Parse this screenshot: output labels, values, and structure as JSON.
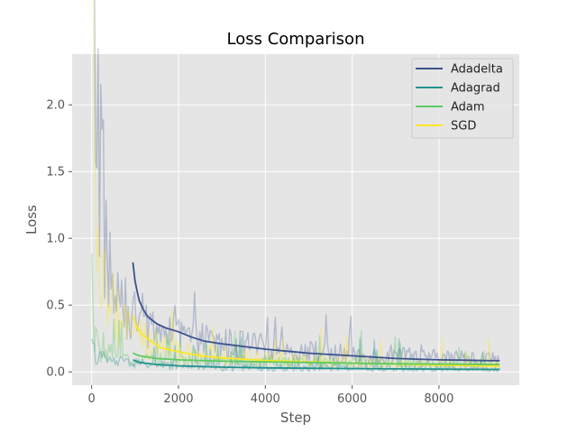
{
  "chart_data": {
    "type": "line",
    "title": "Loss Comparison",
    "xlabel": "Step",
    "ylabel": "Loss",
    "xlim": [
      -450,
      9850
    ],
    "ylim": [
      -0.1,
      2.38
    ],
    "xticks": [
      0,
      2000,
      4000,
      6000,
      8000
    ],
    "yticks": [
      0.0,
      0.5,
      1.0,
      1.5,
      2.0
    ],
    "xtick_labels": [
      "0",
      "2000",
      "4000",
      "6000",
      "8000"
    ],
    "ytick_labels": [
      "0.0",
      "0.5",
      "1.0",
      "1.5",
      "2.0"
    ],
    "grid": true,
    "legend_position": "top-right",
    "background": "#e5e5e5",
    "series": [
      {
        "name": "Adadelta",
        "color": "#3b528b",
        "raw_points": [
          [
            0,
            2.28
          ],
          [
            100,
            2.1
          ],
          [
            200,
            1.6
          ],
          [
            300,
            1.05
          ],
          [
            400,
            0.7
          ],
          [
            500,
            0.55
          ],
          [
            600,
            0.48
          ],
          [
            800,
            0.42
          ],
          [
            1000,
            0.38
          ],
          [
            1500,
            0.3
          ],
          [
            2000,
            0.25
          ],
          [
            3000,
            0.2
          ],
          [
            4000,
            0.17
          ],
          [
            5000,
            0.14
          ],
          [
            6000,
            0.12
          ],
          [
            7000,
            0.11
          ],
          [
            8000,
            0.1
          ],
          [
            9400,
            0.09
          ]
        ],
        "smooth_points": [
          [
            950,
            0.82
          ],
          [
            1000,
            0.68
          ],
          [
            1050,
            0.6
          ],
          [
            1100,
            0.53
          ],
          [
            1200,
            0.46
          ],
          [
            1300,
            0.41
          ],
          [
            1500,
            0.36
          ],
          [
            1700,
            0.33
          ],
          [
            2000,
            0.3
          ],
          [
            2300,
            0.26
          ],
          [
            2600,
            0.23
          ],
          [
            3000,
            0.21
          ],
          [
            3500,
            0.19
          ],
          [
            4000,
            0.17
          ],
          [
            4500,
            0.155
          ],
          [
            5000,
            0.14
          ],
          [
            5500,
            0.13
          ],
          [
            6000,
            0.12
          ],
          [
            6500,
            0.11
          ],
          [
            7000,
            0.1
          ],
          [
            7500,
            0.095
          ],
          [
            8000,
            0.09
          ],
          [
            8500,
            0.088
          ],
          [
            9000,
            0.085
          ],
          [
            9400,
            0.083
          ]
        ]
      },
      {
        "name": "Adagrad",
        "color": "#21918c",
        "raw_points": [
          [
            0,
            0.18
          ],
          [
            100,
            0.12
          ],
          [
            200,
            0.1
          ],
          [
            400,
            0.08
          ],
          [
            600,
            0.07
          ],
          [
            1000,
            0.06
          ],
          [
            2000,
            0.04
          ],
          [
            3000,
            0.035
          ],
          [
            4000,
            0.03
          ],
          [
            5000,
            0.028
          ],
          [
            6000,
            0.025
          ],
          [
            7000,
            0.022
          ],
          [
            8000,
            0.02
          ],
          [
            9400,
            0.018
          ]
        ],
        "smooth_points": [
          [
            950,
            0.09
          ],
          [
            1100,
            0.07
          ],
          [
            1500,
            0.055
          ],
          [
            2000,
            0.045
          ],
          [
            2500,
            0.04
          ],
          [
            3000,
            0.035
          ],
          [
            4000,
            0.03
          ],
          [
            5000,
            0.027
          ],
          [
            6000,
            0.024
          ],
          [
            7000,
            0.022
          ],
          [
            8000,
            0.02
          ],
          [
            9400,
            0.018
          ]
        ]
      },
      {
        "name": "Adam",
        "color": "#5ec962",
        "raw_points": [
          [
            0,
            0.62
          ],
          [
            50,
            0.3
          ],
          [
            100,
            0.2
          ],
          [
            200,
            0.15
          ],
          [
            400,
            0.12
          ],
          [
            600,
            0.1
          ],
          [
            1000,
            0.09
          ],
          [
            2000,
            0.08
          ],
          [
            3000,
            0.075
          ],
          [
            4000,
            0.07
          ],
          [
            5000,
            0.068
          ],
          [
            6000,
            0.065
          ],
          [
            7000,
            0.062
          ],
          [
            8000,
            0.06
          ],
          [
            9400,
            0.058
          ]
        ],
        "smooth_points": [
          [
            950,
            0.14
          ],
          [
            1100,
            0.12
          ],
          [
            1500,
            0.1
          ],
          [
            2000,
            0.09
          ],
          [
            3000,
            0.08
          ],
          [
            4000,
            0.075
          ],
          [
            5000,
            0.07
          ],
          [
            6000,
            0.065
          ],
          [
            7000,
            0.06
          ],
          [
            8000,
            0.058
          ],
          [
            9400,
            0.055
          ]
        ]
      },
      {
        "name": "SGD",
        "color": "#fde725",
        "raw_points": [
          [
            0,
            2.22
          ],
          [
            40,
            1.6
          ],
          [
            80,
            1.1
          ],
          [
            150,
            0.8
          ],
          [
            250,
            0.62
          ],
          [
            400,
            0.48
          ],
          [
            600,
            0.38
          ],
          [
            800,
            0.3
          ],
          [
            1000,
            0.25
          ],
          [
            1500,
            0.18
          ],
          [
            2000,
            0.14
          ],
          [
            3000,
            0.11
          ],
          [
            4000,
            0.09
          ],
          [
            5000,
            0.075
          ],
          [
            6000,
            0.065
          ],
          [
            7000,
            0.055
          ],
          [
            8000,
            0.048
          ],
          [
            9400,
            0.042
          ]
        ],
        "smooth_points": [
          [
            950,
            0.42
          ],
          [
            1050,
            0.33
          ],
          [
            1200,
            0.27
          ],
          [
            1400,
            0.22
          ],
          [
            1600,
            0.18
          ],
          [
            2000,
            0.15
          ],
          [
            2500,
            0.12
          ],
          [
            3000,
            0.105
          ],
          [
            3500,
            0.095
          ],
          [
            4000,
            0.085
          ],
          [
            5000,
            0.075
          ],
          [
            6000,
            0.065
          ],
          [
            7000,
            0.058
          ],
          [
            8000,
            0.05
          ],
          [
            9000,
            0.045
          ],
          [
            9400,
            0.042
          ]
        ]
      }
    ]
  }
}
